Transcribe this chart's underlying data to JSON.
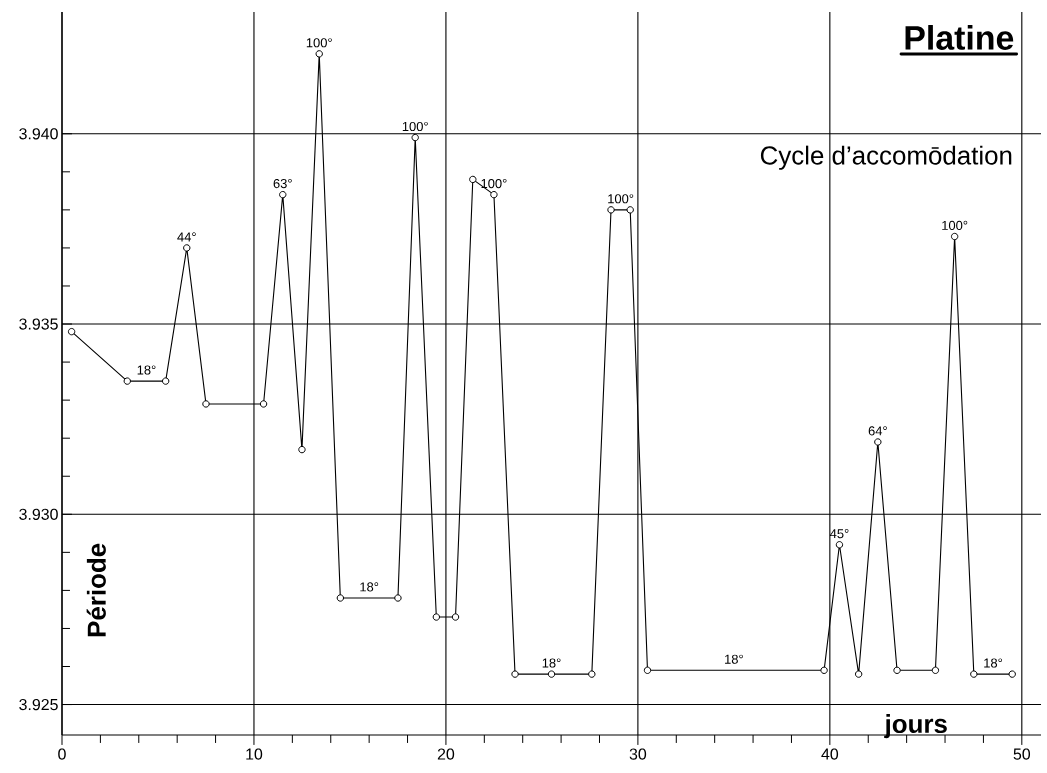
{
  "chart_data": {
    "type": "line",
    "title": "Platine",
    "subtitle": "Cycle d’accomōdation",
    "xlabel": "jours",
    "ylabel": "Période",
    "x": [
      0.5,
      3.4,
      5.4,
      6.5,
      7.5,
      10.5,
      11.5,
      12.5,
      13.4,
      14.5,
      17.5,
      18.4,
      19.5,
      20.5,
      21.4,
      22.5,
      23.6,
      25.5,
      27.6,
      28.6,
      29.6,
      30.5,
      39.7,
      40.5,
      41.5,
      42.5,
      43.5,
      45.5,
      46.5,
      47.5,
      49.5
    ],
    "series": [
      {
        "color": "#000000",
        "values": [
          3.9348,
          3.9335,
          3.9335,
          3.937,
          3.9329,
          3.9329,
          3.9384,
          3.9317,
          3.9421,
          3.9278,
          3.9278,
          3.9399,
          3.9273,
          3.9273,
          3.9388,
          3.9384,
          3.9258,
          3.9258,
          3.9258,
          3.938,
          3.938,
          3.9259,
          3.9259,
          3.9292,
          3.9258,
          3.9319,
          3.9259,
          3.9259,
          3.9373,
          3.9258,
          3.9258
        ]
      }
    ],
    "annotations": [
      {
        "text": "18°",
        "x": 4.4,
        "y": 3.9335
      },
      {
        "text": "44°",
        "x": 6.5,
        "y": 3.937
      },
      {
        "text": "63°",
        "x": 11.5,
        "y": 3.9384
      },
      {
        "text": "100°",
        "x": 13.4,
        "y": 3.9421
      },
      {
        "text": "18°",
        "x": 16,
        "y": 3.9278
      },
      {
        "text": "100°",
        "x": 18.4,
        "y": 3.9399
      },
      {
        "text": "100°",
        "x": 22.5,
        "y": 3.9384
      },
      {
        "text": "18°",
        "x": 25.5,
        "y": 3.9258
      },
      {
        "text": "100°",
        "x": 29.1,
        "y": 3.938
      },
      {
        "text": "18°",
        "x": 35,
        "y": 3.9259
      },
      {
        "text": "45°",
        "x": 40.5,
        "y": 3.9292
      },
      {
        "text": "64°",
        "x": 42.5,
        "y": 3.9319
      },
      {
        "text": "100°",
        "x": 46.5,
        "y": 3.9373
      },
      {
        "text": "18°",
        "x": 48.5,
        "y": 3.9258
      }
    ],
    "xlim": [
      0,
      51
    ],
    "ylim": [
      3.9242,
      3.9432
    ],
    "xticks": [
      0,
      10,
      20,
      30,
      40,
      50
    ],
    "yticks": [
      {
        "value": 3.925,
        "label": "3.925"
      },
      {
        "value": 3.93,
        "label": "3.930"
      },
      {
        "value": 3.935,
        "label": "3.935"
      },
      {
        "value": 3.94,
        "label": "3.940"
      }
    ],
    "grid": true,
    "marker": "circle",
    "line_style": "solid"
  }
}
